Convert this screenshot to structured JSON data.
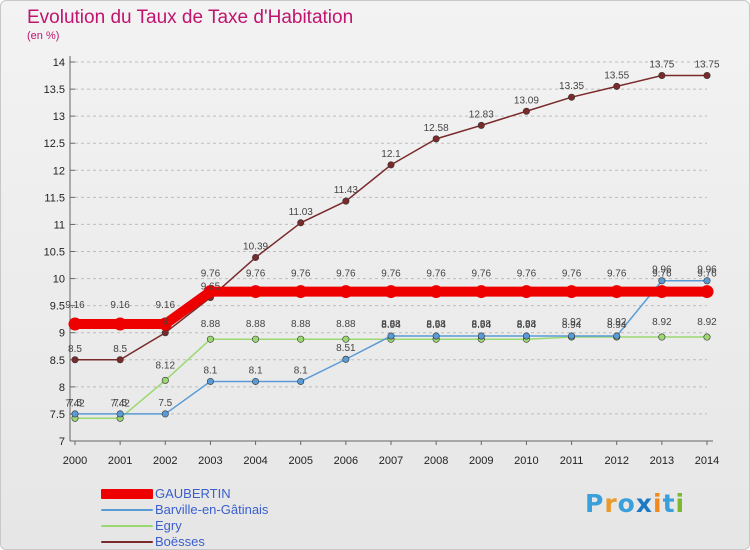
{
  "title": "Evolution du Taux de Taxe d'Habitation",
  "subtitle": "(en %)",
  "logo": {
    "letters": [
      "P",
      "r",
      "o",
      "x",
      "i",
      "t",
      "i"
    ],
    "colors": [
      "#3aa0dc",
      "#e89a2c",
      "#3aa0dc",
      "#1c7ac4",
      "#f08a1c",
      "#3aa0dc",
      "#7ab832"
    ]
  },
  "colors": {
    "title": "#c0146e",
    "grid": "#bdbdbd",
    "axis": "#666666",
    "legend_text": "#3a5fcd"
  },
  "chart_data": {
    "type": "line",
    "x": [
      "2000",
      "2001",
      "2002",
      "2003",
      "2004",
      "2005",
      "2006",
      "2007",
      "2008",
      "2009",
      "2010",
      "2011",
      "2012",
      "2013",
      "2014"
    ],
    "y_ticks": [
      "7",
      "7.5",
      "8",
      "8.5",
      "9",
      "9.5",
      "10",
      "10.5",
      "11",
      "11.5",
      "12",
      "12.5",
      "13",
      "13.5",
      "14"
    ],
    "ylim": [
      7,
      14
    ],
    "grid": "horizontal dashed",
    "legend": "bottom-left",
    "series": [
      {
        "name": "GAUBERTIN",
        "color": "#ee0000",
        "width": 10,
        "values": [
          9.16,
          9.16,
          9.16,
          9.76,
          9.76,
          9.76,
          9.76,
          9.76,
          9.76,
          9.76,
          9.76,
          9.76,
          9.76,
          9.76,
          9.76
        ],
        "labels": [
          "9.16",
          "9.16",
          "9.16",
          "9.76",
          "9.76",
          "9.76",
          "9.76",
          "9.76",
          "9.76",
          "9.76",
          "9.76",
          "9.76",
          "9.76",
          "9.76",
          "9.76"
        ]
      },
      {
        "name": "Barville-en-Gâtinais",
        "color": "#5b9bd5",
        "width": 1.5,
        "values": [
          7.5,
          7.5,
          7.5,
          8.1,
          8.1,
          8.1,
          8.51,
          8.94,
          8.94,
          8.94,
          8.94,
          8.94,
          8.94,
          9.96,
          9.96
        ],
        "labels": [
          "7.5",
          "7.5",
          "7.5",
          "8.1",
          "8.1",
          "8.1",
          "8.51",
          "8.94",
          "8.94",
          "8.94",
          "8.94",
          "8.94",
          "8.94",
          "9.96",
          "9.96"
        ]
      },
      {
        "name": "Egry",
        "color": "#9bd872",
        "width": 1.5,
        "values": [
          7.42,
          7.42,
          8.12,
          8.88,
          8.88,
          8.88,
          8.88,
          8.88,
          8.88,
          8.88,
          8.88,
          8.92,
          8.92,
          8.92,
          8.92
        ],
        "labels": [
          "7.42",
          "7.42",
          "8.12",
          "8.88",
          "8.88",
          "8.88",
          "8.88",
          "8.88",
          "8.88",
          "8.88",
          "8.88",
          "8.92",
          "8.92",
          "8.92",
          "8.92"
        ]
      },
      {
        "name": "Boësses",
        "color": "#7a2a2a",
        "width": 1.5,
        "values": [
          8.5,
          8.5,
          9,
          9.65,
          10.39,
          11.03,
          11.43,
          12.1,
          12.58,
          12.83,
          13.09,
          13.35,
          13.55,
          13.75,
          13.75
        ],
        "labels": [
          "8.5",
          "8.5",
          "9",
          "9.65",
          "10.39",
          "11.03",
          "11.43",
          "12.1",
          "12.58",
          "12.83",
          "13.09",
          "13.35",
          "13.55",
          "13.75",
          "13.75"
        ]
      }
    ]
  }
}
